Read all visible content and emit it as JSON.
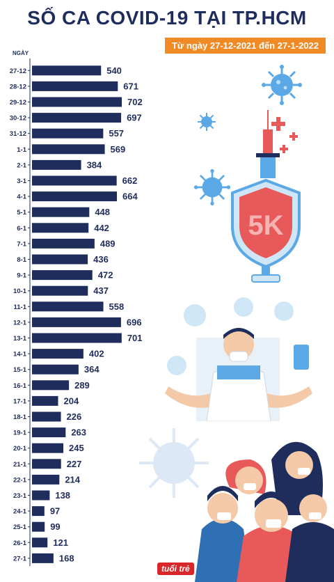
{
  "title": "SỐ CA COVID-19 TẠI TP.HCM",
  "subtitle": "Từ ngày 27-12-2021 đến 27-1-2022",
  "logo_text": "tuổi trẻ",
  "chart_data": {
    "type": "bar",
    "orientation": "horizontal",
    "title": "SỐ CA COVID-19 TẠI TP.HCM",
    "subtitle": "Từ ngày 27-12-2021 đến 27-1-2022",
    "ylabel": "NGÀY",
    "xlabel": "",
    "categories": [
      "27-12",
      "28-12",
      "29-12",
      "30-12",
      "31-12",
      "1-1",
      "2-1",
      "3-1",
      "4-1",
      "5-1",
      "6-1",
      "7-1",
      "8-1",
      "9-1",
      "10-1",
      "11-1",
      "12-1",
      "13-1",
      "14-1",
      "15-1",
      "16-1",
      "17-1",
      "18-1",
      "19-1",
      "20-1",
      "21-1",
      "22-1",
      "23-1",
      "24-1",
      "25-1",
      "26-1",
      "27-1"
    ],
    "values": [
      540,
      671,
      702,
      697,
      557,
      569,
      384,
      662,
      664,
      448,
      442,
      489,
      436,
      472,
      437,
      558,
      696,
      701,
      402,
      364,
      289,
      204,
      226,
      263,
      245,
      227,
      214,
      138,
      97,
      99,
      121,
      168
    ],
    "bar_color": "#1f2d5c",
    "label_color": "#1f2d5c",
    "grid": false,
    "xlim": [
      0,
      702
    ]
  },
  "colors": {
    "navy": "#1f2d5c",
    "orange": "#f08a24",
    "virus": "#5aa9e6",
    "shield": "#e85a5a"
  },
  "icons": [
    "virus-icon",
    "syringe-icon",
    "shield-5k-icon",
    "doctor-icon",
    "people-masks-icon"
  ]
}
